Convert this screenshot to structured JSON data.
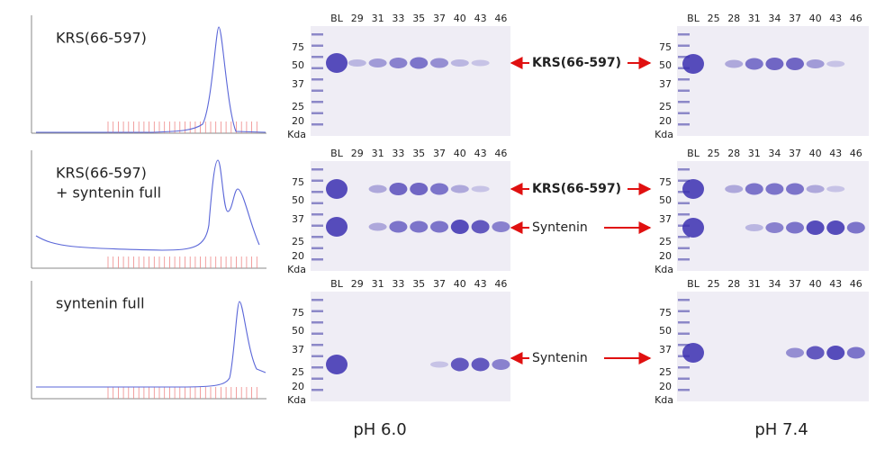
{
  "markers": [
    "75",
    "50",
    "37",
    "25",
    "20"
  ],
  "marker_unit": "Kda",
  "lanes_ph6": [
    "BL",
    "29",
    "31",
    "33",
    "35",
    "37",
    "40",
    "43",
    "46"
  ],
  "lanes_ph74": [
    "BL",
    "25",
    "28",
    "31",
    "34",
    "37",
    "40",
    "43",
    "46"
  ],
  "rows": [
    {
      "label": [
        "KRS(66-597)"
      ],
      "arrows": [
        {
          "text": "KRS(66-597)",
          "bold": true
        }
      ]
    },
    {
      "label": [
        "KRS(66-597)",
        "+ syntenin full"
      ],
      "arrows": [
        {
          "text": "KRS(66-597)",
          "bold": true
        },
        {
          "text": "Syntenin",
          "bold": false
        }
      ]
    },
    {
      "label": [
        "syntenin full"
      ],
      "arrows": [
        {
          "text": "Syntenin",
          "bold": false
        }
      ]
    }
  ],
  "footer": [
    "pH 6.0",
    "pH 7.4"
  ]
}
